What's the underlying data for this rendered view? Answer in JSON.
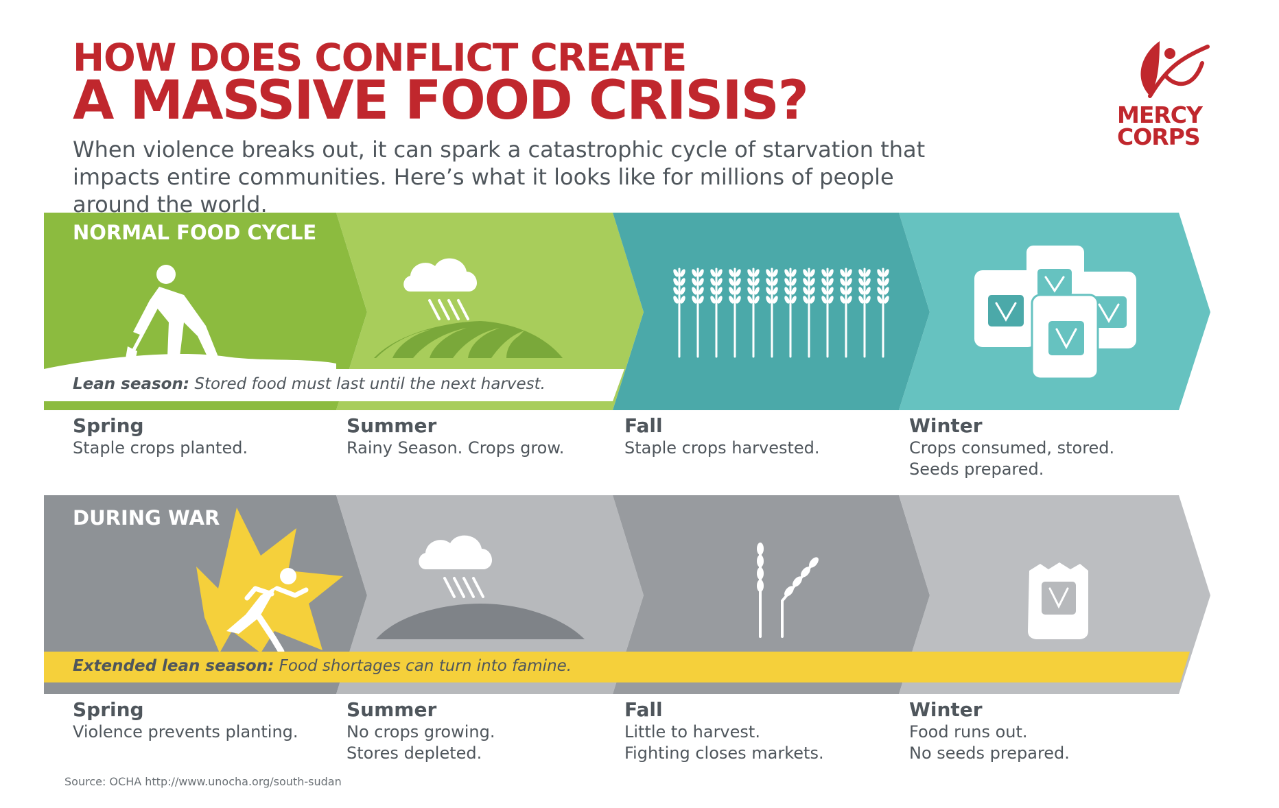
{
  "title": {
    "line1": "HOW DOES CONFLICT CREATE",
    "line2": "A MASSIVE FOOD CRISIS?"
  },
  "subtitle": "When violence breaks out, it can spark a catastrophic cycle of starvation that impacts entire communities. Here’s what it looks like for millions of people around the world.",
  "logo": {
    "text_line1": "MERCY",
    "text_line2": "CORPS",
    "color": "#c0272d"
  },
  "normal_cycle": {
    "label": "NORMAL FOOD CYCLE",
    "lean_label": "Lean season:",
    "lean_text": " Stored food must last until the next harvest.",
    "seasons": [
      {
        "name": "Spring",
        "desc": "Staple crops planted.",
        "icon": "farmer-hoeing-icon"
      },
      {
        "name": "Summer",
        "desc": "Rainy Season. Crops grow.",
        "icon": "rain-cloud-field-icon"
      },
      {
        "name": "Fall",
        "desc": "Staple crops harvested.",
        "icon": "wheat-row-icon"
      },
      {
        "name": "Winter",
        "desc": "Crops consumed, stored.",
        "desc2": "Seeds prepared.",
        "icon": "grain-sacks-icon"
      }
    ],
    "colors": [
      "#8cbb3f",
      "#a8cd5b",
      "#4ba9a9",
      "#66c2c0"
    ]
  },
  "war_cycle": {
    "label": "DURING WAR",
    "lean_label": "Extended lean season:",
    "lean_text": " Food shortages can turn into famine.",
    "seasons": [
      {
        "name": "Spring",
        "desc": "Violence prevents planting.",
        "icon": "fleeing-person-explosion-icon"
      },
      {
        "name": "Summer",
        "desc": "No crops growing.",
        "desc2": "Stores depleted.",
        "icon": "rain-cloud-bare-hill-icon"
      },
      {
        "name": "Fall",
        "desc": "Little to harvest.",
        "desc2": "Fighting closes markets.",
        "icon": "two-wheat-stalks-icon"
      },
      {
        "name": "Winter",
        "desc": "Food runs out.",
        "desc2": "No seeds prepared.",
        "icon": "single-sack-icon"
      }
    ],
    "colors": [
      "#8e9296",
      "#b7b9bc",
      "#989b9f",
      "#bcbec1"
    ],
    "highlight_color": "#f5d03b"
  },
  "source": "Source: OCHA http://www.unocha.org/south-sudan"
}
